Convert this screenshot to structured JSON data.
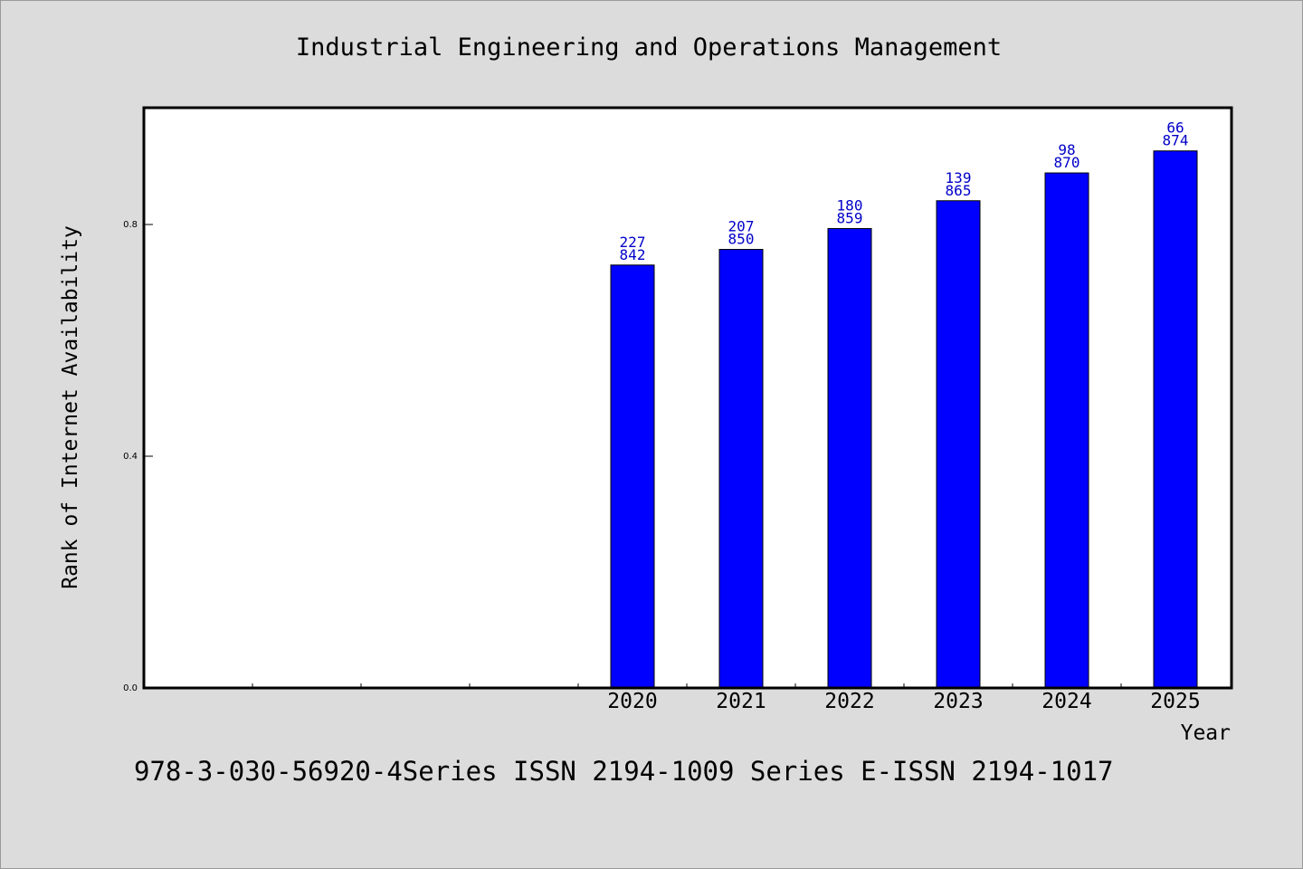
{
  "chart_data": {
    "type": "bar",
    "title": "Industrial Engineering and Operations Management",
    "xlabel": "Year",
    "ylabel": "Rank of Internet Availability",
    "ylim": [
      0,
      1.0
    ],
    "yticks": [
      "0.0",
      "0.4",
      "0.8"
    ],
    "categories": [
      "2020",
      "2021",
      "2022",
      "2023",
      "2024",
      "2025"
    ],
    "values": [
      0.73,
      0.757,
      0.793,
      0.841,
      0.889,
      0.927
    ],
    "labels_top": [
      "227",
      "207",
      "180",
      "139",
      "98",
      "66"
    ],
    "labels_bottom": [
      "842",
      "850",
      "859",
      "865",
      "870",
      "874"
    ],
    "bar_color": "#0000ff",
    "label_color": "#0000c8",
    "grid": false,
    "legend": "none"
  },
  "footer": "978-3-030-56920-4Series ISSN 2194-1009 Series E-ISSN 2194-1017"
}
